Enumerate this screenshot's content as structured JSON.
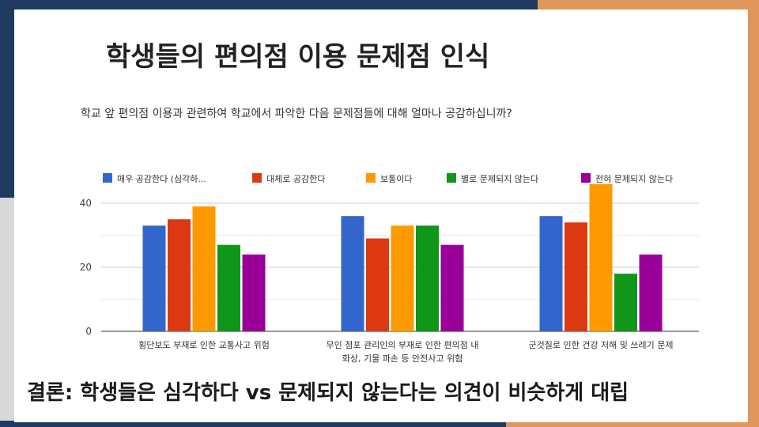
{
  "slide": {
    "title": "학생들의 편의점 이용 문제점 인식",
    "conclusion": "결론: 학생들은 심각하다 vs 문제되지 않는다는 의견이 비슷하게 대립"
  },
  "chart_data": {
    "type": "bar",
    "title": "학교 앞 편의점 이용과 관련하여 학교에서 파악한 다음 문제점들에 대해 얼마나 공감하십니까?",
    "categories": [
      [
        "횡단보도 부재로 인한 교통사고 위험"
      ],
      [
        "무인 점포 관리인의 부재로 인한 편의점 내",
        "화상, 기물 파손 등 안전사고 위험"
      ],
      [
        "군것질로 인한 건강 저해 및 쓰레기 문제"
      ]
    ],
    "series": [
      {
        "name": "매우 공감한다 (심각하...",
        "color": "#3366cc",
        "values": [
          33,
          36,
          36
        ]
      },
      {
        "name": "대체로 공감한다",
        "color": "#dc3912",
        "values": [
          35,
          29,
          34
        ]
      },
      {
        "name": "보통이다",
        "color": "#ff9900",
        "values": [
          39,
          33,
          46
        ]
      },
      {
        "name": "별로 문제되지 않는다",
        "color": "#109618",
        "values": [
          27,
          33,
          18
        ]
      },
      {
        "name": "전혀 문제되지 않는다",
        "color": "#990099",
        "values": [
          24,
          27,
          24
        ]
      }
    ],
    "yticks": [
      0,
      20,
      40
    ],
    "ylim": [
      0,
      46
    ],
    "grid": true,
    "legend_position": "top"
  }
}
